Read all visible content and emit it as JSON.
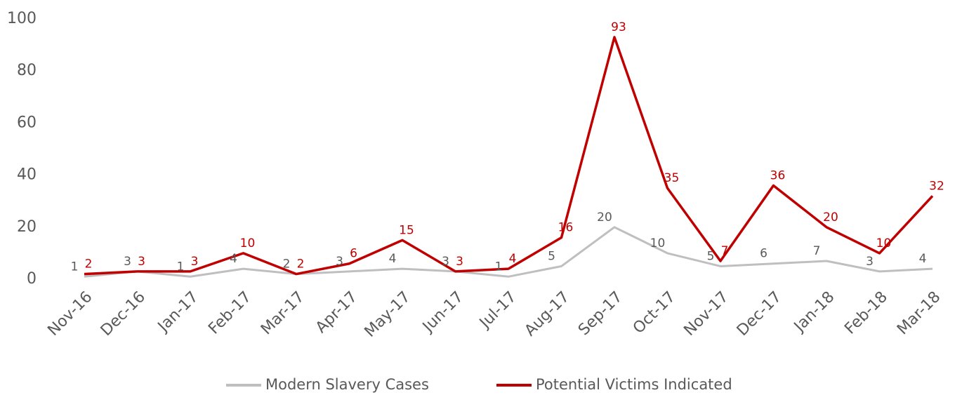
{
  "chart_data": {
    "type": "line",
    "categories": [
      "Nov-16",
      "Dec-16",
      "Jan-17",
      "Feb-17",
      "Mar-17",
      "Apr-17",
      "May-17",
      "Jun-17",
      "Jul-17",
      "Aug-17",
      "Sep-17",
      "Oct-17",
      "Nov-17",
      "Dec-17",
      "Jan-18",
      "Feb-18",
      "Mar-18"
    ],
    "series": [
      {
        "name": "Modern Slavery Cases",
        "color": "#bfbfbf",
        "values": [
          1,
          3,
          1,
          4,
          2,
          3,
          4,
          3,
          1,
          5,
          20,
          10,
          5,
          6,
          7,
          3,
          4
        ]
      },
      {
        "name": "Potential Victims Indicated",
        "color": "#c00000",
        "values": [
          2,
          3,
          3,
          10,
          2,
          6,
          15,
          3,
          4,
          16,
          93,
          35,
          7,
          36,
          20,
          10,
          32
        ]
      }
    ],
    "ylim": [
      0,
      100
    ],
    "yticks": [
      0,
      20,
      40,
      60,
      80,
      100
    ],
    "grid": false,
    "legend": "bottom"
  }
}
